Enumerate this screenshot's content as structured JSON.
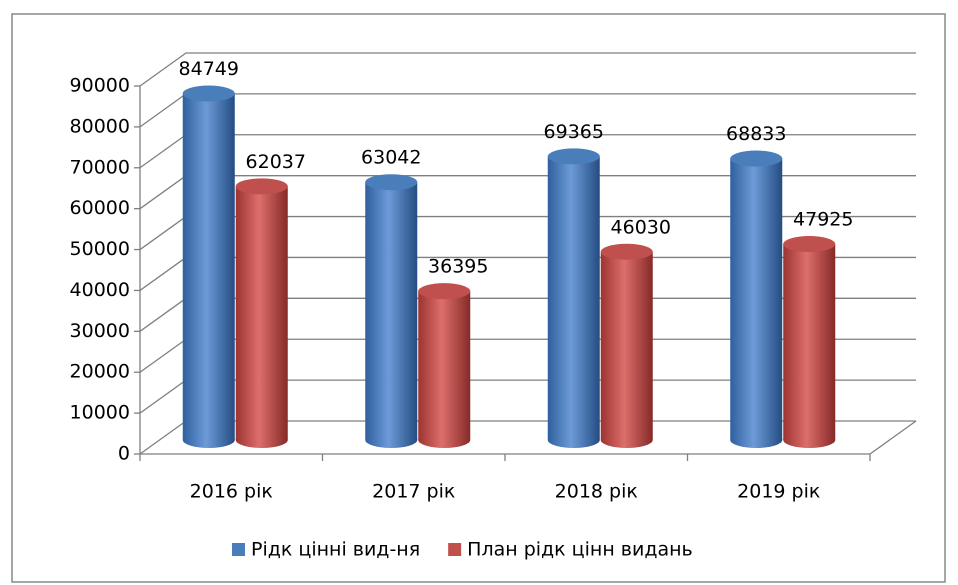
{
  "chart_data": {
    "type": "bar3d",
    "categories": [
      "2016 рік",
      "2017 рік",
      "2018 рік",
      "2019 рік"
    ],
    "series": [
      {
        "name": "Рідк цінні вид-ня",
        "color": "#4a7ebb",
        "values": [
          84749,
          63042,
          69365,
          68833
        ]
      },
      {
        "name": "План рідк цінн видань",
        "color": "#c0504d",
        "values": [
          62037,
          36395,
          46030,
          47925
        ]
      }
    ],
    "ylim": [
      0,
      90000
    ],
    "yticks": [
      0,
      10000,
      20000,
      30000,
      40000,
      50000,
      60000,
      70000,
      80000,
      90000
    ],
    "grid": true,
    "legend": "bottom"
  }
}
